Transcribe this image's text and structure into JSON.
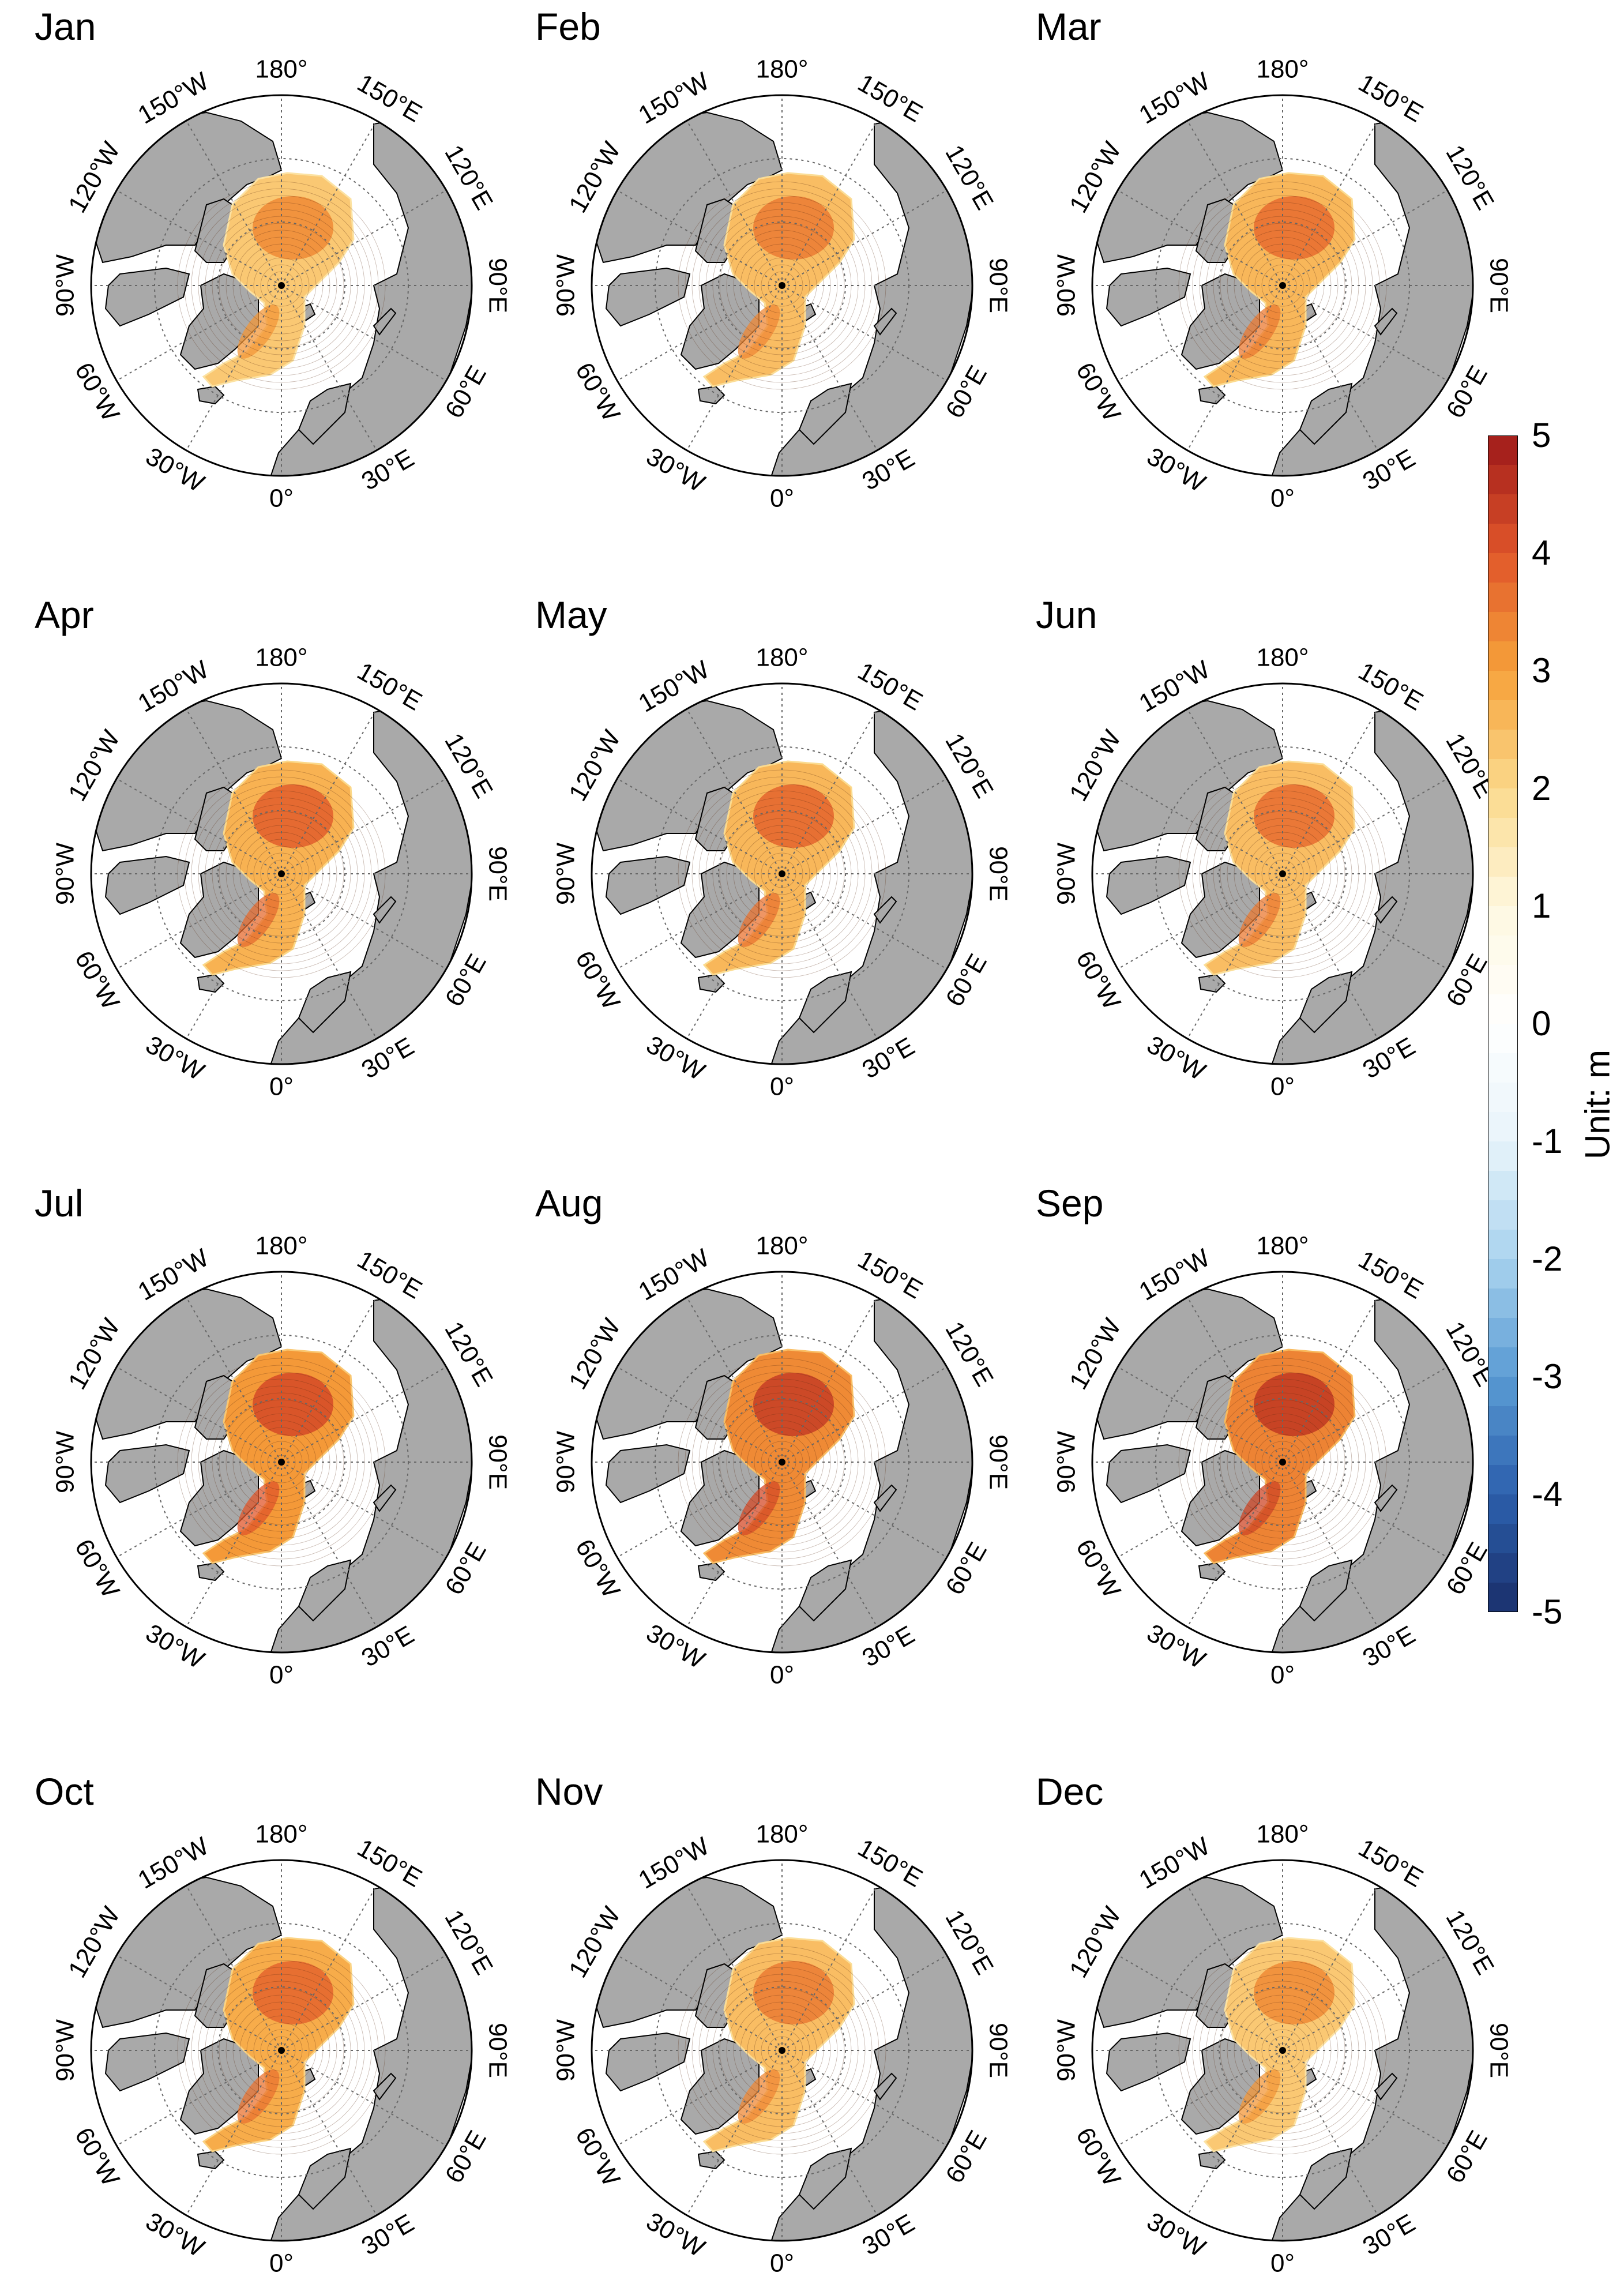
{
  "figure": {
    "colorbar": {
      "label": "Unit: m",
      "range": [
        -5,
        5
      ],
      "ticks": [
        "5",
        "4",
        "3",
        "2",
        "1",
        "0",
        "-1",
        "-2",
        "-3",
        "-4",
        "-5"
      ],
      "colors": [
        "#1a2f6b",
        "#2c60ad",
        "#5a9bd4",
        "#a9d3ee",
        "#e8f4fa",
        "#ffffff",
        "#fef8e0",
        "#fbd98b",
        "#f6a13a",
        "#e0552a",
        "#9e1a1a"
      ]
    },
    "map_style": {
      "land_color": "#a9a9a9",
      "ocean_color": "#ffffff",
      "coastline_color": "#000000",
      "graticule_color": "#666666"
    },
    "longitude_labels": [
      "180°",
      "150°E",
      "120°E",
      "90°E",
      "60°E",
      "30°E",
      "0°",
      "30°W",
      "60°W",
      "90°W",
      "120°W",
      "150°W"
    ],
    "panels": [
      {
        "month": "Jan",
        "thickness_max_m": 3.3,
        "mean_m": 2.3
      },
      {
        "month": "Feb",
        "thickness_max_m": 3.5,
        "mean_m": 2.5
      },
      {
        "month": "Mar",
        "thickness_max_m": 3.7,
        "mean_m": 2.6
      },
      {
        "month": "Apr",
        "thickness_max_m": 3.9,
        "mean_m": 2.7
      },
      {
        "month": "May",
        "thickness_max_m": 3.8,
        "mean_m": 2.6
      },
      {
        "month": "Jun",
        "thickness_max_m": 3.7,
        "mean_m": 2.5
      },
      {
        "month": "Jul",
        "thickness_max_m": 4.2,
        "mean_m": 3.1
      },
      {
        "month": "Aug",
        "thickness_max_m": 4.4,
        "mean_m": 3.3
      },
      {
        "month": "Sep",
        "thickness_max_m": 4.5,
        "mean_m": 3.4
      },
      {
        "month": "Oct",
        "thickness_max_m": 3.8,
        "mean_m": 2.8
      },
      {
        "month": "Nov",
        "thickness_max_m": 3.5,
        "mean_m": 2.5
      },
      {
        "month": "Dec",
        "thickness_max_m": 3.3,
        "mean_m": 2.3
      }
    ]
  }
}
